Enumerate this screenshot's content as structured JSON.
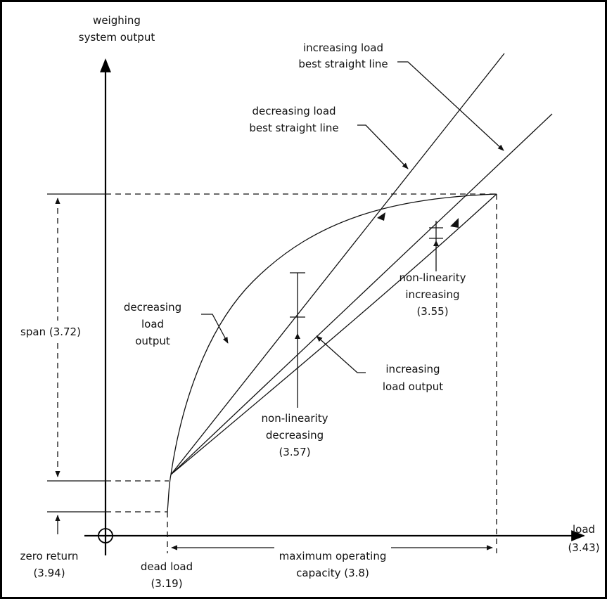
{
  "labels": {
    "y_axis_line1": "weighing",
    "y_axis_line2": "system output",
    "x_axis_line1": "load",
    "x_axis_line2": "(3.43)",
    "inc_bsl_line1": "increasing load",
    "inc_bsl_line2": "best straight line",
    "dec_bsl_line1": "decreasing load",
    "dec_bsl_line2": "best straight line",
    "dec_out_line1": "decreasing",
    "dec_out_line2": "load",
    "dec_out_line3": "output",
    "inc_out_line1": "increasing",
    "inc_out_line2": "load output",
    "nl_inc_line1": "non-linearity",
    "nl_inc_line2": "increasing",
    "nl_inc_line3": "(3.55)",
    "nl_dec_line1": "non-linearity",
    "nl_dec_line2": "decreasing",
    "nl_dec_line3": "(3.57)",
    "span": "span (3.72)",
    "zero_return_line1": "zero return",
    "zero_return_line2": "(3.94)",
    "dead_load_line1": "dead load",
    "dead_load_line2": "(3.19)",
    "max_cap_line1": "maximum operating",
    "max_cap_line2": "capacity (3.8)"
  }
}
